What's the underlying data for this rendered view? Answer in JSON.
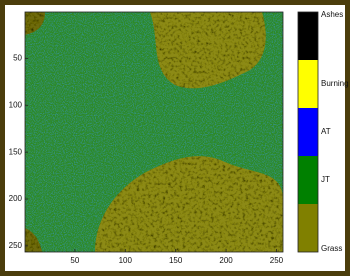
{
  "chart_data": {
    "type": "heatmap",
    "xlim": [
      0.5,
      256.5
    ],
    "ylim": [
      0.5,
      256.5
    ],
    "xticks": [
      50,
      100,
      150,
      200,
      250
    ],
    "yticks": [
      50,
      100,
      150,
      200,
      250
    ],
    "background_color": "#2f8a25",
    "colorbar": {
      "labels": [
        "Ashes",
        "Burning",
        "AT",
        "JT",
        "Grass"
      ],
      "colors": [
        "#000000",
        "#ffff00",
        "#0000ff",
        "#008000",
        "#808000"
      ]
    }
  }
}
